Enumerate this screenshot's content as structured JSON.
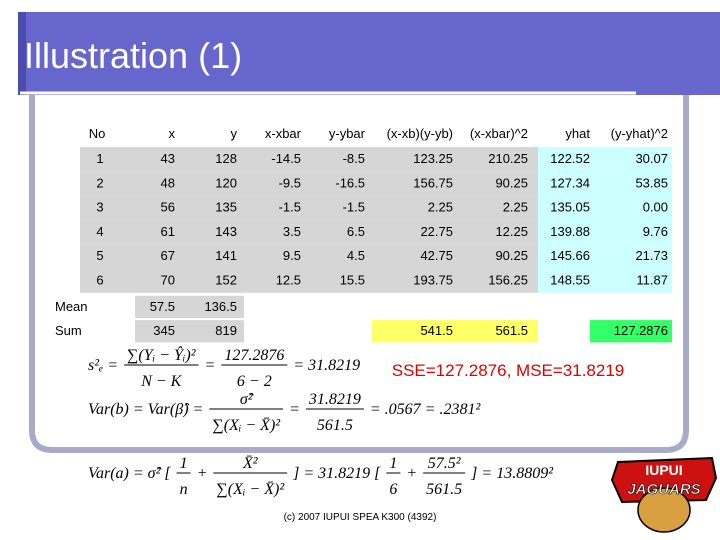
{
  "header": {
    "title": "Illustration (1)"
  },
  "table": {
    "columns": [
      "No",
      "x",
      "y",
      "x-xbar",
      "y-ybar",
      "(x-xb)(y-yb)",
      "(x-xbar)^2",
      "yhat",
      "(y-yhat)^2"
    ],
    "rows": [
      [
        "1",
        "43",
        "128",
        "-14.5",
        "-8.5",
        "123.25",
        "210.25",
        "122.52",
        "30.07"
      ],
      [
        "2",
        "48",
        "120",
        "-9.5",
        "-16.5",
        "156.75",
        "90.25",
        "127.34",
        "53.85"
      ],
      [
        "3",
        "56",
        "135",
        "-1.5",
        "-1.5",
        "2.25",
        "2.25",
        "135.05",
        "0.00"
      ],
      [
        "4",
        "61",
        "143",
        "3.5",
        "6.5",
        "22.75",
        "12.25",
        "139.88",
        "9.76"
      ],
      [
        "5",
        "67",
        "141",
        "9.5",
        "4.5",
        "42.75",
        "90.25",
        "145.66",
        "21.73"
      ],
      [
        "6",
        "70",
        "152",
        "12.5",
        "15.5",
        "193.75",
        "156.25",
        "148.55",
        "11.87"
      ]
    ],
    "summary": [
      [
        "Mean",
        "57.5",
        "136.5",
        null,
        null,
        null,
        null,
        null,
        null
      ],
      [
        "Sum",
        "345",
        "819",
        null,
        null,
        "541.5",
        "561.5",
        null,
        "127.2876"
      ]
    ]
  },
  "formulas": [
    [
      "s²ₑ =",
      {
        "num": "∑(Yᵢ − Ŷᵢ)²",
        "den": "N − K"
      },
      "=",
      {
        "num": "127.2876",
        "den": "6 − 2"
      },
      "= 31.8219"
    ],
    [
      "Var(b) = Var(β̂) =",
      {
        "num": "σ̂²",
        "den": "∑(Xᵢ − X̄)²"
      },
      "=",
      {
        "num": "31.8219",
        "den": "561.5"
      },
      "= .0567 = .2381²"
    ],
    [
      "Var(a) = σ̂² [",
      {
        "num": "1",
        "den": "n"
      },
      "+",
      {
        "num": "X̄²",
        "den": "∑(Xᵢ − X̄)²"
      },
      "] = 31.8219 [",
      {
        "num": "1",
        "den": "6"
      },
      "+",
      {
        "num": "57.5²",
        "den": "561.5"
      },
      "] = 13.8809²"
    ]
  ],
  "note": "SSE=127.2876, MSE=31.8219",
  "footer": "(c) 2007 IUPUI SPEA K300 (4392)",
  "logo": {
    "top": "IUPUI",
    "bottom": "JAGUARS"
  }
}
